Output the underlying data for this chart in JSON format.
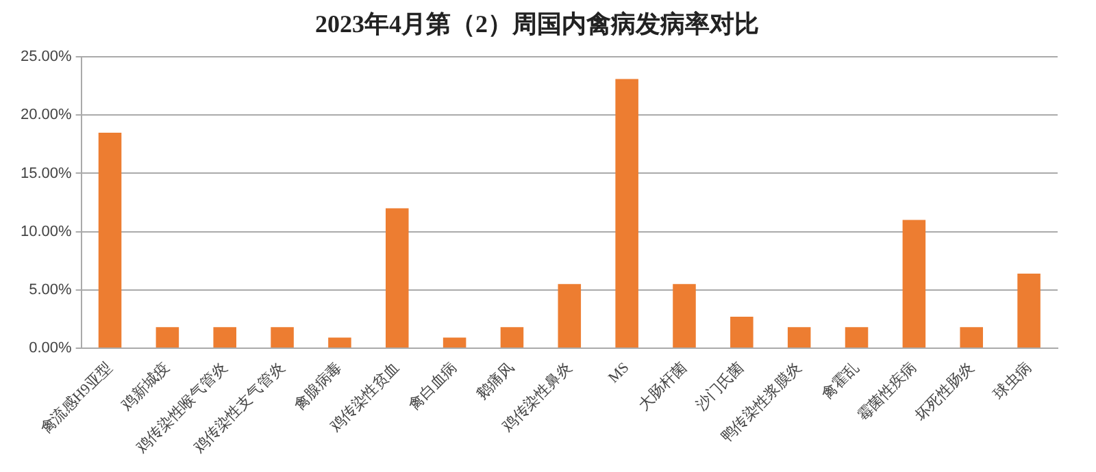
{
  "chart_data": {
    "type": "bar",
    "title": "2023年4月第（2）周国内禽病发病率对比",
    "categories": [
      "禽流感H9亚型",
      "鸡新城疫",
      "鸡传染性喉气管炎",
      "鸡传染性支气管炎",
      "禽腺病毒",
      "鸡传染性贫血",
      "禽白血病",
      "鹅痛风",
      "鸡传染性鼻炎",
      "MS",
      "大肠杆菌",
      "沙门氏菌",
      "鸭传染性浆膜炎",
      "禽霍乱",
      "霉菌性疾病",
      "坏死性肠炎",
      "球虫病"
    ],
    "values": [
      18.5,
      1.8,
      1.8,
      1.8,
      0.9,
      12.0,
      0.9,
      1.8,
      5.5,
      23.1,
      5.5,
      2.7,
      1.8,
      1.8,
      11.0,
      1.8,
      6.4
    ],
    "color": "#ed7d31",
    "ylim": [
      0,
      25
    ],
    "yticks": [
      {
        "value": 0,
        "label": "0.00%"
      },
      {
        "value": 5,
        "label": "5.00%"
      },
      {
        "value": 10,
        "label": "10.00%"
      },
      {
        "value": 15,
        "label": "15.00%"
      },
      {
        "value": 20,
        "label": "20.00%"
      },
      {
        "value": 25,
        "label": "25.00%"
      }
    ],
    "grid": "y"
  }
}
